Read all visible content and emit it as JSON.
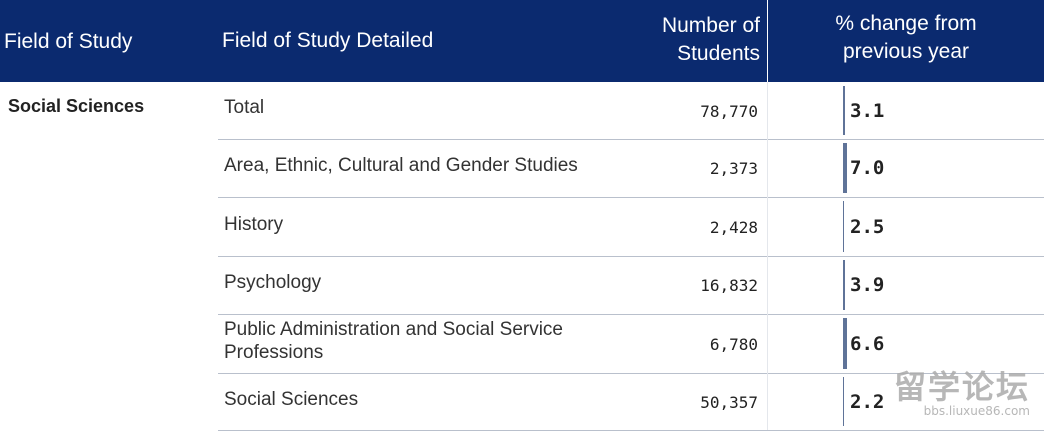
{
  "header": {
    "field_of_study": "Field of Study",
    "field_detailed": "Field of Study Detailed",
    "number_line1": "Number of",
    "number_line2": "Students",
    "pct_line1": "% change from",
    "pct_line2": "previous year"
  },
  "group": "Social Sciences",
  "rows": [
    {
      "detail": "Total",
      "students": "78,770",
      "pct_label": "3.1",
      "pct": 3.1
    },
    {
      "detail": "Area, Ethnic, Cultural and Gender Studies",
      "students": "2,373",
      "pct_label": "7.0",
      "pct": 7.0
    },
    {
      "detail": "History",
      "students": "2,428",
      "pct_label": "2.5",
      "pct": 2.5
    },
    {
      "detail": "Psychology",
      "students": "16,832",
      "pct_label": "3.9",
      "pct": 3.9
    },
    {
      "detail": "Public Administration and Social Service Professions",
      "students": "6,780",
      "pct_label": "6.6",
      "pct": 6.6
    },
    {
      "detail": "Social Sciences",
      "students": "50,357",
      "pct_label": "2.2",
      "pct": 2.2
    }
  ],
  "watermark": {
    "main": "留学论坛",
    "sub": "bbs.liuxue86.com"
  },
  "colors": {
    "header_bg": "#0b2a6f",
    "bar": "#5f7398"
  }
}
